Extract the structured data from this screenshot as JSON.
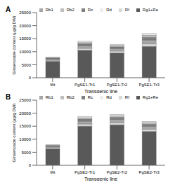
{
  "chart_data": [
    {
      "type": "bar",
      "title": "A",
      "stacked": true,
      "grid": false,
      "legend": "top",
      "x_label": "Transgenic line",
      "y_label": "Ginsenoside content (μg/g DW)",
      "categories": [
        "Wt",
        "PgSE1-Tr1",
        "PgSE1-Tr2",
        "PgSE1-Tr3"
      ],
      "ylim": [
        0,
        25000
      ],
      "yticks": [
        0,
        5000,
        10000,
        15000,
        20000,
        25000
      ],
      "series": [
        {
          "name": "Rg1+Re",
          "color": "#595959",
          "values": [
            6300,
            10500,
            9500,
            12000
          ]
        },
        {
          "name": "Rf",
          "color": "#d9d9d9",
          "values": [
            400,
            800,
            750,
            1000
          ]
        },
        {
          "name": "Rb1",
          "color": "#a6a6a6",
          "values": [
            500,
            1000,
            950,
            1500
          ]
        },
        {
          "name": "Rc",
          "color": "#7f7f7f",
          "values": [
            300,
            700,
            650,
            1000
          ]
        },
        {
          "name": "Rb2",
          "color": "#bfbfbf",
          "values": [
            200,
            500,
            500,
            800
          ]
        },
        {
          "name": "Rd",
          "color": "#ededed",
          "values": [
            200,
            500,
            450,
            700
          ]
        }
      ]
    },
    {
      "type": "bar",
      "title": "B",
      "stacked": true,
      "grid": false,
      "legend": "top",
      "x_label": "Transgenic line",
      "y_label": "Ginsenoside content (μg/g DW)",
      "categories": [
        "Wt",
        "PgSE2-Tr1",
        "PgSE2-Tr2",
        "PgSE2-Tr3"
      ],
      "ylim": [
        0,
        25000
      ],
      "yticks": [
        0,
        5000,
        10000,
        15000,
        20000,
        25000
      ],
      "series": [
        {
          "name": "Rg1+Re",
          "color": "#595959",
          "values": [
            6300,
            15000,
            15500,
            13000
          ]
        },
        {
          "name": "Rf",
          "color": "#d9d9d9",
          "values": [
            400,
            850,
            900,
            850
          ]
        },
        {
          "name": "Rb1",
          "color": "#a6a6a6",
          "values": [
            500,
            1100,
            1200,
            1100
          ]
        },
        {
          "name": "Rc",
          "color": "#7f7f7f",
          "values": [
            300,
            750,
            800,
            800
          ]
        },
        {
          "name": "Rb2",
          "color": "#bfbfbf",
          "values": [
            200,
            500,
            550,
            550
          ]
        },
        {
          "name": "Rd",
          "color": "#ededed",
          "values": [
            200,
            500,
            550,
            500
          ]
        }
      ]
    }
  ]
}
